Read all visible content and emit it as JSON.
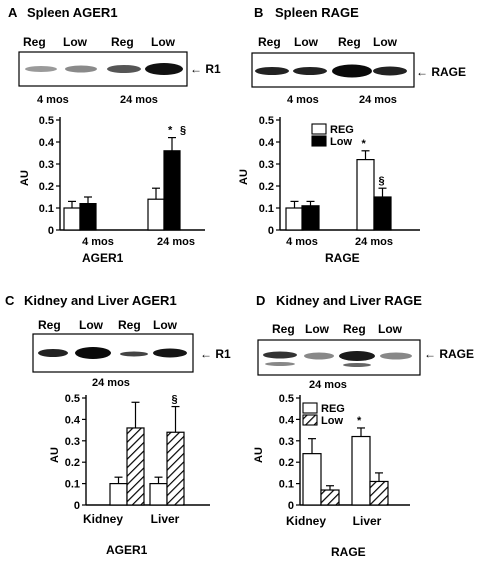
{
  "colors": {
    "reg": "#ffffff",
    "low": "#000000",
    "stroke": "#000000"
  },
  "panels": [
    {
      "id": "A",
      "letter": "A",
      "title": "Spleen AGER1",
      "blot_lanes": [
        "Reg",
        "Low",
        "Reg",
        "Low"
      ],
      "blot_band_label": "R1",
      "age_labels": [
        "4 mos",
        "24 mos"
      ],
      "chart_data": {
        "type": "bar",
        "categories": [
          "4 mos",
          "24 mos"
        ],
        "series": [
          {
            "values": [
              0.1,
              0.14
            ],
            "errors": [
              0.03,
              0.05
            ],
            "fill": "white"
          },
          {
            "values": [
              0.12,
              0.36
            ],
            "errors": [
              0.03,
              0.06
            ],
            "fill": "black"
          }
        ],
        "ylabel": "AU",
        "xlabel": "AGER1",
        "ylim": [
          0,
          0.5
        ],
        "yticks": [
          "0",
          "0.1",
          "0.2",
          "0.3",
          "0.4",
          "0.5"
        ],
        "annotations": [
          {
            "text": "*",
            "category": 1,
            "series": 1
          },
          {
            "text": "§",
            "category": 1,
            "series": 1
          }
        ]
      }
    },
    {
      "id": "B",
      "letter": "B",
      "title": "Spleen RAGE",
      "blot_lanes": [
        "Reg",
        "Low",
        "Reg",
        "Low"
      ],
      "blot_band_label": "RAGE",
      "age_labels": [
        "4 mos",
        "24 mos"
      ],
      "legend": [
        "REG",
        "Low"
      ],
      "chart_data": {
        "type": "bar",
        "categories": [
          "4 mos",
          "24 mos"
        ],
        "series": [
          {
            "name": "REG",
            "values": [
              0.1,
              0.32
            ],
            "errors": [
              0.03,
              0.04
            ],
            "fill": "white"
          },
          {
            "name": "Low",
            "values": [
              0.11,
              0.15
            ],
            "errors": [
              0.02,
              0.04
            ],
            "fill": "black"
          }
        ],
        "ylabel": "AU",
        "xlabel": "RAGE",
        "ylim": [
          0,
          0.5
        ],
        "yticks": [
          "0",
          "0.1",
          "0.2",
          "0.3",
          "0.4",
          "0.5"
        ],
        "annotations": [
          {
            "text": "*",
            "category": 1,
            "series": 0
          },
          {
            "text": "§",
            "category": 1,
            "series": 1
          }
        ]
      }
    },
    {
      "id": "C",
      "letter": "C",
      "title": "Kidney and Liver  AGER1",
      "blot_lanes": [
        "Reg",
        "Low",
        "Reg",
        "Low"
      ],
      "blot_band_label": "R1",
      "age_labels": [
        "24 mos"
      ],
      "chart_data": {
        "type": "bar",
        "categories": [
          "Kidney",
          "Liver"
        ],
        "series": [
          {
            "values": [
              0.1,
              0.1
            ],
            "errors": [
              0.03,
              0.03
            ],
            "fill": "white"
          },
          {
            "values": [
              0.36,
              0.34
            ],
            "errors": [
              0.12,
              0.12
            ],
            "fill": "hatch"
          }
        ],
        "ylabel": "AU",
        "xlabel": "AGER1",
        "ylim": [
          0,
          0.5
        ],
        "yticks": [
          "0",
          "0.1",
          "0.2",
          "0.3",
          "0.4",
          "0.5"
        ],
        "annotations": [
          {
            "text": "§",
            "category": 1,
            "series": 1
          }
        ]
      }
    },
    {
      "id": "D",
      "letter": "D",
      "title": "Kidney and Liver RAGE",
      "blot_lanes": [
        "Reg",
        "Low",
        "Reg",
        "Low"
      ],
      "blot_band_label": "RAGE",
      "age_labels": [
        "24 mos"
      ],
      "legend": [
        "REG",
        "Low"
      ],
      "chart_data": {
        "type": "bar",
        "categories": [
          "Kidney",
          "Liver"
        ],
        "series": [
          {
            "name": "REG",
            "values": [
              0.24,
              0.32
            ],
            "errors": [
              0.07,
              0.04
            ],
            "fill": "white"
          },
          {
            "name": "Low",
            "values": [
              0.07,
              0.11
            ],
            "errors": [
              0.02,
              0.04
            ],
            "fill": "hatch"
          }
        ],
        "ylabel": "AU",
        "xlabel": "RAGE",
        "ylim": [
          0,
          0.5
        ],
        "yticks": [
          "0",
          "0.1",
          "0.2",
          "0.3",
          "0.4",
          "0.5"
        ],
        "annotations": [
          {
            "text": "*",
            "category": 1,
            "series": 0
          }
        ]
      }
    }
  ]
}
